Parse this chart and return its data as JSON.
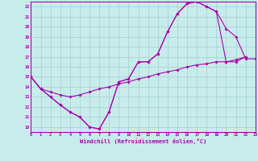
{
  "xlabel": "Windchill (Refroidissement éolien,°C)",
  "xlim": [
    0,
    23
  ],
  "ylim": [
    9.5,
    22.5
  ],
  "xticks": [
    0,
    1,
    2,
    3,
    4,
    5,
    6,
    7,
    8,
    9,
    10,
    11,
    12,
    13,
    14,
    15,
    16,
    17,
    18,
    19,
    20,
    21,
    22,
    23
  ],
  "yticks": [
    10,
    11,
    12,
    13,
    14,
    15,
    16,
    17,
    18,
    19,
    20,
    21,
    22
  ],
  "bg_color": "#c8ecec",
  "grid_color": "#a8d4d4",
  "line_color": "#aa00aa",
  "curve1_x": [
    0,
    1,
    2,
    3,
    4,
    5,
    6,
    7,
    8,
    9,
    10,
    11,
    12,
    13,
    14,
    15,
    16,
    17,
    18,
    19,
    20,
    21,
    22,
    23
  ],
  "curve1_y": [
    15.0,
    13.8,
    13.0,
    12.2,
    11.5,
    11.0,
    10.0,
    9.8,
    11.5,
    14.5,
    14.8,
    16.5,
    16.5,
    17.3,
    19.5,
    21.3,
    22.3,
    22.5,
    22.0,
    21.5,
    19.8,
    19.0,
    16.8,
    16.8
  ],
  "curve2_x": [
    0,
    1,
    2,
    3,
    4,
    5,
    6,
    7,
    8,
    9,
    10,
    11,
    12,
    13,
    14,
    15,
    16,
    17,
    18,
    19,
    20,
    21,
    22
  ],
  "curve2_y": [
    15.0,
    13.8,
    13.0,
    12.2,
    11.5,
    11.0,
    10.0,
    9.8,
    11.5,
    14.5,
    14.8,
    16.5,
    16.5,
    17.3,
    19.5,
    21.3,
    22.3,
    22.5,
    22.0,
    21.5,
    16.5,
    16.5,
    17.0
  ],
  "curve3_x": [
    0,
    1,
    2,
    3,
    4,
    5,
    6,
    7,
    8,
    9,
    10,
    11,
    12,
    13,
    14,
    15,
    16,
    17,
    18,
    19,
    20,
    21,
    22
  ],
  "curve3_y": [
    15.0,
    13.8,
    13.5,
    13.2,
    13.0,
    13.2,
    13.5,
    13.8,
    14.0,
    14.3,
    14.5,
    14.8,
    15.0,
    15.3,
    15.5,
    15.7,
    16.0,
    16.2,
    16.3,
    16.5,
    16.5,
    16.7,
    17.0
  ]
}
